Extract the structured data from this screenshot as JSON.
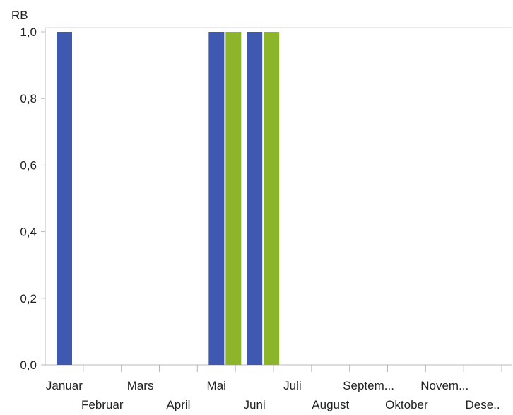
{
  "chart_data": {
    "type": "bar",
    "ylabel": "RB",
    "ylim": [
      0,
      1
    ],
    "yticks": [
      "1,0",
      "0,8",
      "0,6",
      "0,4",
      "0,2",
      "0,0"
    ],
    "ytick_values": [
      1.0,
      0.8,
      0.6,
      0.4,
      0.2,
      0.0
    ],
    "categories": [
      "Januar",
      "Februar",
      "Mars",
      "April",
      "Mai",
      "Juni",
      "Juli",
      "August",
      "Septem...",
      "Oktober",
      "Novem...",
      "Dese.."
    ],
    "series": [
      {
        "color": "#3f58b0",
        "values": [
          1,
          0,
          0,
          0,
          1,
          1,
          0,
          0,
          0,
          0,
          0,
          0
        ]
      },
      {
        "color": "#8db52b",
        "values": [
          0,
          0,
          0,
          0,
          1,
          1,
          0,
          0,
          0,
          0,
          0,
          0
        ]
      }
    ],
    "grid": false,
    "legend": "none"
  }
}
